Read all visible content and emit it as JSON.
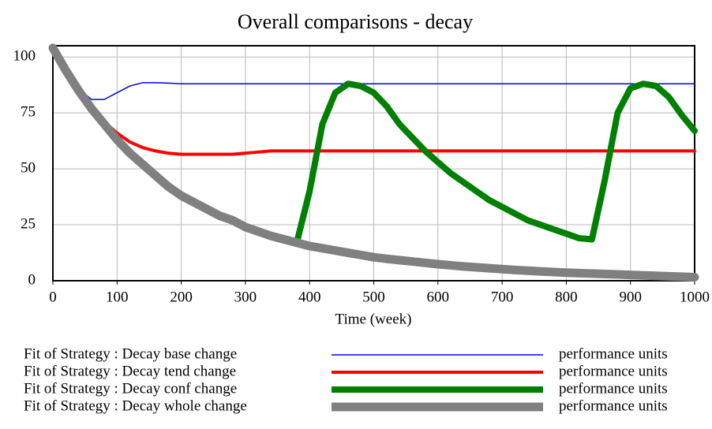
{
  "chart_data": {
    "type": "line",
    "title": "Overall comparisons - decay",
    "x_label": "Time (week)",
    "x": [
      0,
      20,
      40,
      60,
      80,
      100,
      120,
      140,
      160,
      180,
      200,
      220,
      240,
      260,
      280,
      300,
      320,
      340,
      360,
      380,
      400,
      420,
      440,
      460,
      480,
      500,
      520,
      540,
      560,
      580,
      600,
      620,
      640,
      660,
      680,
      700,
      720,
      740,
      760,
      780,
      800,
      820,
      840,
      860,
      880,
      900,
      920,
      940,
      960,
      980,
      1000
    ],
    "xlim": [
      0,
      1000
    ],
    "xticks": [
      0,
      100,
      200,
      300,
      400,
      500,
      600,
      700,
      800,
      900,
      1000
    ],
    "ylim": [
      0,
      105
    ],
    "yticks": [
      0,
      25,
      50,
      75,
      100
    ],
    "grid": true,
    "series": [
      {
        "name": "Fit of Strategy : Decay base change",
        "units": "performance units",
        "color": "#0000ee",
        "values": [
          104,
          95,
          86,
          81,
          81,
          84,
          87,
          88.5,
          88.5,
          88.3,
          88,
          88,
          88,
          88,
          88,
          88,
          88,
          88,
          88,
          88,
          88,
          88,
          88,
          88,
          88,
          88,
          88,
          88,
          88,
          88,
          88,
          88,
          88,
          88,
          88,
          88,
          88,
          88,
          88,
          88,
          88,
          88,
          88,
          88,
          88,
          88,
          88,
          88,
          88,
          88,
          88
        ]
      },
      {
        "name": "Fit of Strategy : Decay tend change",
        "units": "performance units",
        "color": "#ff0000",
        "values": [
          104,
          94,
          85,
          77,
          71,
          66,
          62,
          59.5,
          58,
          57,
          56.5,
          56.5,
          56.5,
          56.5,
          56.5,
          57,
          57.5,
          58,
          58,
          58,
          58,
          58,
          58,
          58,
          58,
          58,
          58,
          58,
          58,
          58,
          58,
          58,
          58,
          58,
          58,
          58,
          58,
          58,
          58,
          58,
          58,
          58,
          58,
          58,
          58,
          58,
          58,
          58,
          58,
          58,
          58
        ]
      },
      {
        "name": "Fit of Strategy : Decay conf change",
        "units": "performance units",
        "color": "#008000",
        "values": [
          104,
          94,
          85,
          77,
          70,
          63,
          57,
          52,
          47,
          42,
          38,
          35,
          32,
          29,
          27,
          24,
          22,
          20,
          18.5,
          17,
          40,
          70,
          84,
          88,
          87,
          84,
          78,
          70,
          64,
          58,
          53,
          48,
          44,
          40,
          36,
          33,
          30,
          27,
          25,
          23,
          21,
          19,
          18.5,
          45,
          75,
          86,
          88,
          87,
          82,
          74,
          67
        ]
      },
      {
        "name": "Fit of Strategy : Decay whole change",
        "units": "performance units",
        "color": "#808080",
        "values": [
          104,
          94,
          85,
          77,
          70,
          63,
          57,
          52,
          47,
          42,
          38,
          35,
          32,
          29,
          27,
          24,
          22,
          20,
          18.5,
          17,
          15.5,
          14.5,
          13.5,
          12.5,
          11.5,
          10.5,
          9.8,
          9.2,
          8.6,
          8,
          7.4,
          6.9,
          6.4,
          6,
          5.6,
          5.2,
          4.8,
          4.5,
          4.2,
          3.9,
          3.6,
          3.4,
          3.2,
          3,
          2.8,
          2.6,
          2.4,
          2.2,
          2,
          1.8,
          1.6
        ]
      }
    ]
  }
}
